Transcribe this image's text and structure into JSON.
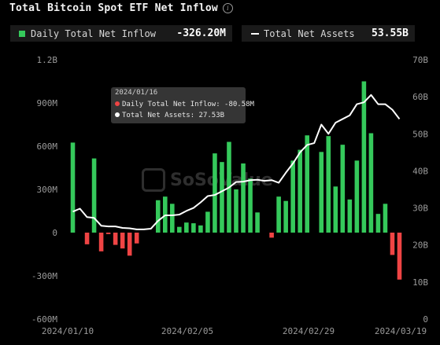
{
  "header": {
    "title": "Total Bitcoin Spot ETF Net Inflow",
    "info_icon": "info-circle-icon"
  },
  "stats": {
    "inflow_label": "Daily Total Net Inflow",
    "inflow_value": "-326.20M",
    "assets_label": "Total Net Assets",
    "assets_value": "53.55B"
  },
  "tooltip": {
    "date": "2024/01/16",
    "inflow_text": "Daily Total Net Inflow: -80.58M",
    "assets_text": "Total Net Assets: 27.53B"
  },
  "watermark": {
    "text": "SoSoValue"
  },
  "colors": {
    "positive": "#35c95b",
    "negative": "#ef4444",
    "line": "#ffffff",
    "background": "#000000"
  },
  "chart_data": {
    "type": "bar",
    "title": "Total Bitcoin Spot ETF Net Inflow",
    "x_tick_labels": [
      "2024/01/10",
      "2024/02/05",
      "2024/02/29",
      "2024/03/19"
    ],
    "left_axis": {
      "ticks": [
        "-600M",
        "-300M",
        "0",
        "300M",
        "600M",
        "900M",
        "1.2B"
      ],
      "ylim": [
        -600,
        1200
      ],
      "unit": "M"
    },
    "right_axis": {
      "ticks": [
        "0",
        "10B",
        "20B",
        "30B",
        "40B",
        "50B",
        "60B",
        "70B"
      ],
      "ylim": [
        0,
        70
      ],
      "unit": "B"
    },
    "x": [
      "2024/01/11",
      "2024/01/12",
      "2024/01/16",
      "2024/01/17",
      "2024/01/18",
      "2024/01/19",
      "2024/01/22",
      "2024/01/23",
      "2024/01/24",
      "2024/01/25",
      "2024/01/26",
      "2024/01/29",
      "2024/01/30",
      "2024/01/31",
      "2024/02/01",
      "2024/02/02",
      "2024/02/05",
      "2024/02/06",
      "2024/02/07",
      "2024/02/08",
      "2024/02/09",
      "2024/02/12",
      "2024/02/13",
      "2024/02/14",
      "2024/02/15",
      "2024/02/16",
      "2024/02/20",
      "2024/02/21",
      "2024/02/22",
      "2024/02/23",
      "2024/02/26",
      "2024/02/27",
      "2024/02/28",
      "2024/02/29",
      "2024/03/01",
      "2024/03/04",
      "2024/03/05",
      "2024/03/06",
      "2024/03/07",
      "2024/03/08",
      "2024/03/11",
      "2024/03/12",
      "2024/03/13",
      "2024/03/14",
      "2024/03/15",
      "2024/03/18",
      "2024/03/19"
    ],
    "series": [
      {
        "name": "Daily Total Net Inflow",
        "type": "bar",
        "axis": "left",
        "values": [
          625,
          0,
          -81,
          515,
          -130,
          -10,
          -85,
          -110,
          -160,
          -75,
          0,
          0,
          225,
          250,
          200,
          40,
          70,
          65,
          50,
          145,
          550,
          490,
          630,
          300,
          480,
          375,
          140,
          0,
          -35,
          250,
          220,
          500,
          575,
          675,
          0,
          560,
          670,
          320,
          610,
          230,
          500,
          1050,
          690,
          130,
          200,
          -155,
          -326
        ]
      },
      {
        "name": "Total Net Assets",
        "type": "line",
        "axis": "right",
        "values": [
          29.0,
          29.8,
          27.53,
          27.3,
          25.2,
          25.0,
          25.0,
          24.6,
          24.5,
          24.2,
          24.2,
          24.4,
          26.5,
          28.0,
          28.0,
          28.2,
          29.2,
          30.0,
          31.5,
          33.2,
          33.5,
          34.5,
          35.5,
          37.0,
          37.1,
          37.5,
          37.6,
          37.3,
          37.5,
          36.8,
          39.5,
          42.0,
          45.0,
          47.0,
          47.5,
          52.5,
          50.0,
          53.0,
          54.0,
          55.0,
          58.0,
          58.5,
          60.5,
          58.0,
          58.0,
          56.5,
          54.0
        ]
      }
    ],
    "grid": false,
    "legend": "top-left"
  }
}
